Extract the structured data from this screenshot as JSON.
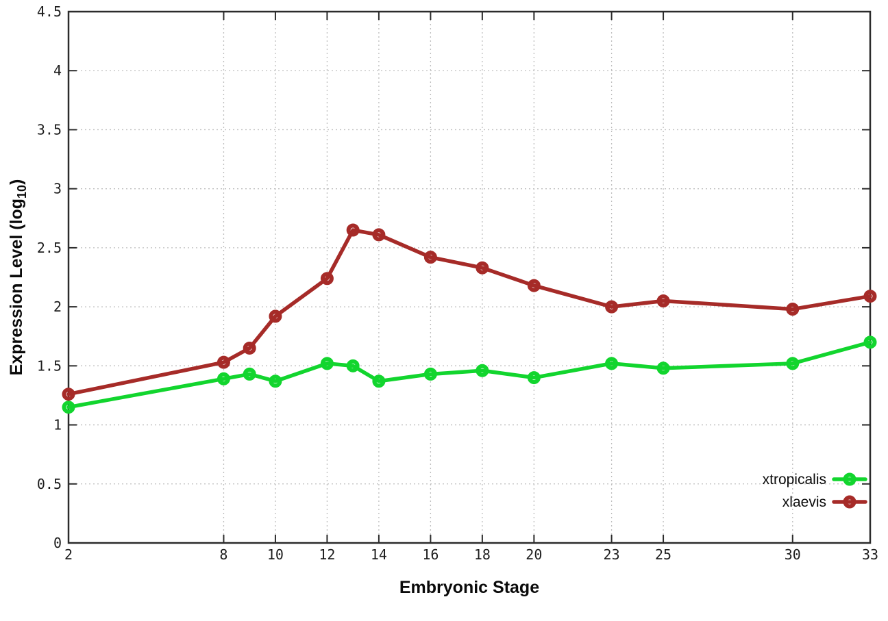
{
  "chart_data": {
    "type": "line",
    "title": "",
    "xlabel": "Embryonic Stage",
    "ylabel_main": "Expression Level (log",
    "ylabel_sub": "10",
    "ylabel_close": ")",
    "x": [
      2,
      8,
      9,
      10,
      12,
      13,
      14,
      16,
      18,
      20,
      23,
      25,
      30,
      33
    ],
    "series": [
      {
        "name": "xtropicalis",
        "color": "#12d52e",
        "values": [
          1.15,
          1.39,
          1.43,
          1.37,
          1.52,
          1.5,
          1.37,
          1.43,
          1.46,
          1.4,
          1.52,
          1.48,
          1.52,
          1.7
        ]
      },
      {
        "name": "xlaevis",
        "color": "#a62b28",
        "values": [
          1.26,
          1.53,
          1.65,
          1.92,
          2.24,
          2.65,
          2.61,
          2.42,
          2.33,
          2.18,
          2.0,
          2.05,
          1.98,
          2.09
        ]
      }
    ],
    "xlim": [
      2,
      33
    ],
    "ylim": [
      0,
      4.5
    ],
    "xticks": [
      2,
      8,
      10,
      12,
      14,
      16,
      18,
      20,
      23,
      25,
      30,
      33
    ],
    "yticks": [
      0,
      0.5,
      1,
      1.5,
      2,
      2.5,
      3,
      3.5,
      4,
      4.5
    ],
    "grid": true,
    "legend_position": "bottom-right"
  },
  "style": {
    "background": "#ffffff",
    "border_color": "#2b2b2b",
    "grid_color": "#bdbdbd",
    "text_color": "#1c1c1c"
  }
}
